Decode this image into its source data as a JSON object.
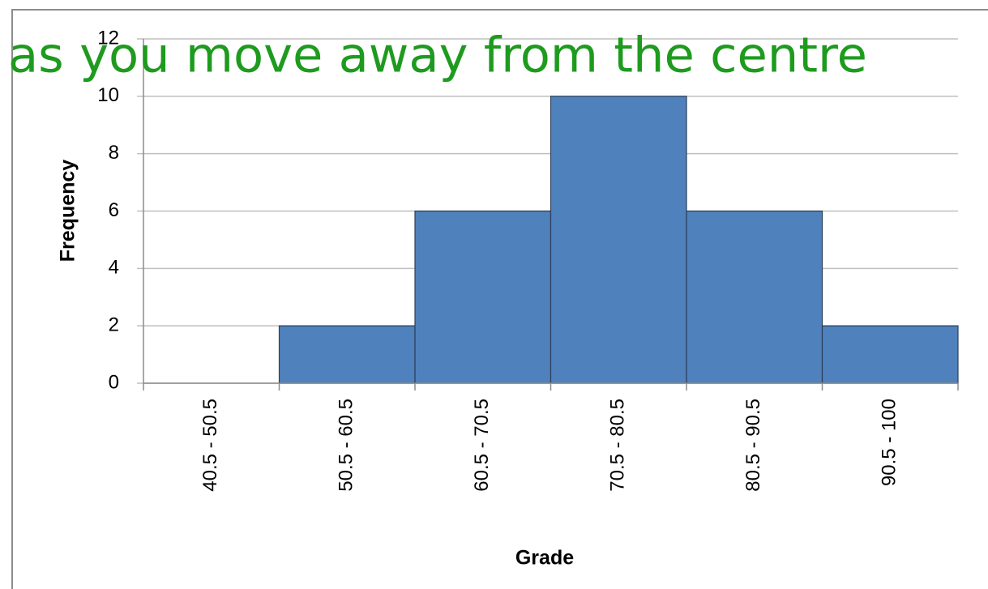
{
  "chart_data": {
    "type": "bar",
    "annotation": "as you move away from the centre",
    "categories": [
      "40.5 - 50.5",
      "50.5 - 60.5",
      "60.5 - 70.5",
      "70.5 - 80.5",
      "80.5 - 90.5",
      "90.5 - 100"
    ],
    "values": [
      0,
      2,
      6,
      10,
      6,
      2
    ],
    "color": "#4f81bd",
    "x_label": "Grade",
    "y_label": "Frequency",
    "ylim": [
      0,
      12
    ],
    "yticks": [
      0,
      2,
      4,
      6,
      8,
      10,
      12
    ],
    "grid": true
  }
}
